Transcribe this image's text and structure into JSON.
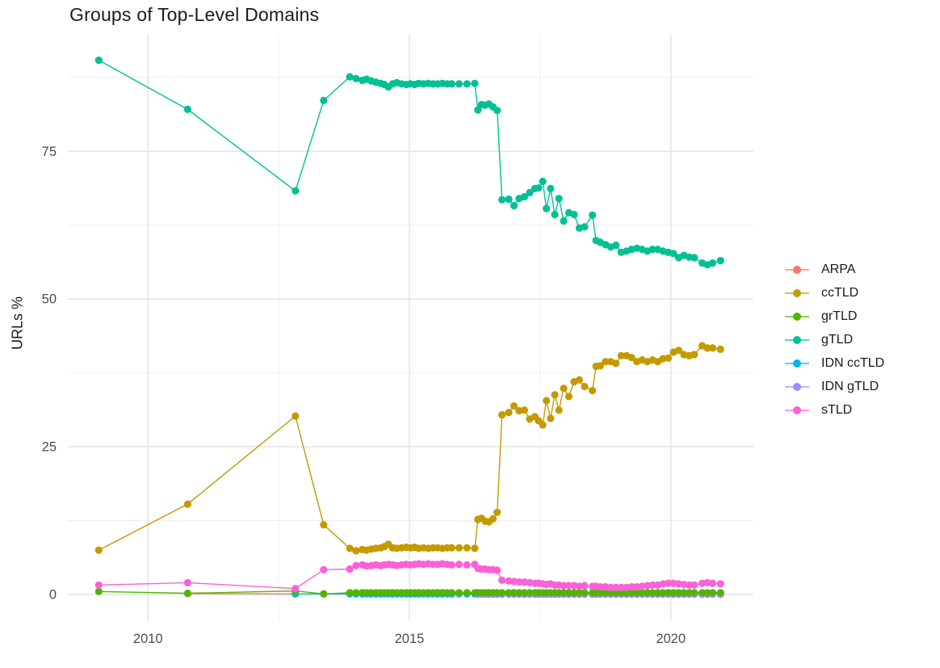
{
  "title": "Groups of Top-Level Domains",
  "ylabel": "URLs %",
  "chart_data": {
    "type": "line",
    "title": "Groups of Top-Level Domains",
    "xlabel": "",
    "ylabel": "URLs %",
    "xlim": [
      2008.5,
      2021.6
    ],
    "ylim": [
      -4.5,
      95
    ],
    "grid": "major and minor, light gray on white",
    "legend_position": "right",
    "x_ticks": [
      2010,
      2015,
      2020
    ],
    "x_tick_labels": [
      "2010",
      "2015",
      "2020"
    ],
    "y_ticks": [
      0,
      25,
      50,
      75
    ],
    "y_tick_labels": [
      "0",
      "25",
      "50",
      "75"
    ],
    "x_shared": [
      2009.06,
      2010.76,
      2012.82,
      2013.36,
      2013.86,
      2013.98,
      2014.1,
      2014.18,
      2014.27,
      2014.36,
      2014.45,
      2014.52,
      2014.6,
      2014.68,
      2014.76,
      2014.85,
      2014.94,
      2015.02,
      2015.1,
      2015.18,
      2015.27,
      2015.36,
      2015.45,
      2015.54,
      2015.63,
      2015.72,
      2015.81,
      2015.95,
      2016.1,
      2016.25,
      2016.31,
      2016.38,
      2016.45,
      2016.52,
      2016.6,
      2016.68,
      2016.77,
      2016.9,
      2017.0,
      2017.1,
      2017.2,
      2017.3,
      2017.4,
      2017.47,
      2017.55,
      2017.62,
      2017.7,
      2017.78,
      2017.86,
      2017.95,
      2018.05,
      2018.15,
      2018.25,
      2018.35,
      2018.5,
      2018.57,
      2018.65,
      2018.75,
      2018.85,
      2018.95,
      2019.05,
      2019.15,
      2019.25,
      2019.35,
      2019.45,
      2019.55,
      2019.65,
      2019.75,
      2019.85,
      2019.95,
      2020.05,
      2020.15,
      2020.25,
      2020.35,
      2020.45,
      2020.6,
      2020.7,
      2020.8,
      2020.95
    ],
    "series": [
      {
        "name": "ARPA",
        "color": "#F8766D",
        "x": [
          2010.76,
          2012.82
        ],
        "y": [
          0.15,
          0.1
        ]
      },
      {
        "name": "ccTLD",
        "color": "#C49A00",
        "x_from_index": 0,
        "y": [
          7.5,
          15.3,
          30.2,
          11.8,
          7.8,
          7.4,
          7.6,
          7.5,
          7.7,
          7.8,
          7.9,
          8.1,
          8.5,
          7.9,
          7.8,
          7.9,
          8.0,
          7.9,
          8.0,
          7.8,
          7.9,
          7.8,
          7.9,
          7.9,
          7.8,
          7.9,
          7.9,
          7.9,
          7.9,
          7.8,
          12.7,
          12.9,
          12.4,
          12.3,
          12.8,
          13.9,
          30.4,
          30.8,
          31.9,
          31.1,
          31.2,
          29.7,
          30.1,
          29.4,
          28.7,
          32.8,
          29.8,
          33.8,
          31.2,
          34.9,
          33.5,
          36.0,
          36.3,
          35.2,
          34.5,
          38.6,
          38.7,
          39.4,
          39.4,
          39.1,
          40.4,
          40.4,
          40.1,
          39.4,
          39.7,
          39.4,
          39.7,
          39.4,
          39.9,
          40.0,
          41.0,
          41.3,
          40.6,
          40.4,
          40.6,
          42.1,
          41.7,
          41.7,
          41.5
        ]
      },
      {
        "name": "grTLD",
        "color": "#53B400",
        "x_from_index": 0,
        "y": [
          0.5,
          0.2,
          0.6,
          0.1,
          0.3,
          0.3,
          0.3,
          0.3,
          0.3,
          0.3,
          0.3,
          0.3,
          0.3,
          0.3,
          0.3,
          0.3,
          0.3,
          0.3,
          0.3,
          0.3,
          0.3,
          0.3,
          0.3,
          0.3,
          0.3,
          0.3,
          0.3,
          0.3,
          0.3,
          0.3,
          0.3,
          0.3,
          0.3,
          0.3,
          0.3,
          0.3,
          0.3,
          0.3,
          0.3,
          0.3,
          0.3,
          0.3,
          0.3,
          0.3,
          0.3,
          0.3,
          0.3,
          0.3,
          0.3,
          0.3,
          0.3,
          0.3,
          0.3,
          0.3,
          0.3,
          0.3,
          0.3,
          0.3,
          0.3,
          0.3,
          0.3,
          0.3,
          0.3,
          0.3,
          0.3,
          0.3,
          0.3,
          0.3,
          0.3,
          0.3,
          0.3,
          0.3,
          0.3,
          0.3,
          0.3,
          0.3,
          0.3,
          0.3,
          0.3
        ]
      },
      {
        "name": "gTLD",
        "color": "#00C094",
        "x_from_index": 0,
        "y": [
          90.4,
          82.1,
          68.3,
          83.6,
          87.6,
          87.3,
          87.0,
          87.2,
          86.9,
          86.7,
          86.5,
          86.3,
          85.9,
          86.4,
          86.6,
          86.4,
          86.3,
          86.4,
          86.3,
          86.5,
          86.4,
          86.5,
          86.4,
          86.4,
          86.5,
          86.4,
          86.4,
          86.4,
          86.4,
          86.5,
          82.0,
          82.9,
          82.8,
          83.0,
          82.5,
          81.9,
          66.8,
          66.9,
          65.8,
          67.0,
          67.3,
          68.0,
          68.7,
          68.8,
          69.9,
          65.3,
          68.7,
          64.3,
          67.0,
          63.2,
          64.6,
          64.3,
          62.0,
          62.2,
          64.2,
          59.9,
          59.6,
          59.2,
          58.8,
          59.1,
          57.9,
          58.1,
          58.4,
          58.6,
          58.4,
          58.1,
          58.4,
          58.4,
          58.1,
          57.9,
          57.7,
          57.0,
          57.4,
          57.1,
          57.0,
          56.1,
          55.8,
          56.1,
          56.5
        ]
      },
      {
        "name": "IDN ccTLD",
        "color": "#00B6EB",
        "x_from_index": 2,
        "y_const": 0.1
      },
      {
        "name": "IDN gTLD",
        "color": "#A58AFF",
        "x_from_index": 30,
        "y_const": 0.05
      },
      {
        "name": "sTLD",
        "color": "#FB61D7",
        "x_from_index": 0,
        "y": [
          1.6,
          2.0,
          1.0,
          4.2,
          4.3,
          4.9,
          5.0,
          4.8,
          4.9,
          5.0,
          4.9,
          5.0,
          5.1,
          5.0,
          4.9,
          5.0,
          5.1,
          5.0,
          5.1,
          5.2,
          5.1,
          5.2,
          5.1,
          5.1,
          5.2,
          5.1,
          5.0,
          5.1,
          5.0,
          5.1,
          4.4,
          4.3,
          4.3,
          4.2,
          4.2,
          4.1,
          2.4,
          2.3,
          2.2,
          2.1,
          2.1,
          2.0,
          1.9,
          1.9,
          1.8,
          1.7,
          1.8,
          1.6,
          1.6,
          1.5,
          1.5,
          1.5,
          1.4,
          1.5,
          1.4,
          1.4,
          1.3,
          1.3,
          1.2,
          1.2,
          1.2,
          1.2,
          1.3,
          1.3,
          1.4,
          1.5,
          1.6,
          1.6,
          1.8,
          1.9,
          1.9,
          1.8,
          1.7,
          1.6,
          1.6,
          1.9,
          2.0,
          1.9,
          1.8
        ]
      }
    ]
  }
}
